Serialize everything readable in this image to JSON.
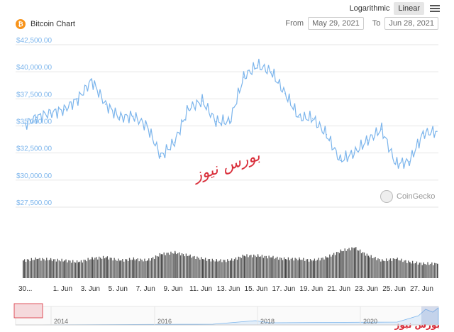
{
  "header": {
    "title": "Bitcoin Chart",
    "scale_log": "Logarithmic",
    "scale_linear": "Linear",
    "from_label": "From",
    "from_value": "May 29, 2021",
    "to_label": "To",
    "to_value": "Jun 28, 2021",
    "coin_glyph": "₿"
  },
  "watermarks": {
    "coingecko": "CoinGecko",
    "center_text": "بورس نیوز",
    "corner_text": "بورس نیوز"
  },
  "colors": {
    "price_line": "#7cb5ec",
    "volume": "#555555",
    "bitcoin_orange": "#f7931a"
  },
  "chart_data": {
    "type": "line",
    "title": "Bitcoin Chart",
    "ylim": [
      27500,
      42500
    ],
    "y_ticks": [
      "$42,500.00",
      "$40,000.00",
      "$37,500.00",
      "$35,000.00",
      "$32,500.00",
      "$30,000.00",
      "$27,500.00"
    ],
    "x_ticks": [
      "30...",
      "1. Jun",
      "3. Jun",
      "5. Jun",
      "7. Jun",
      "9. Jun",
      "11. Jun",
      "13. Jun",
      "15. Jun",
      "17. Jun",
      "19. Jun",
      "21. Jun",
      "23. Jun",
      "25. Jun",
      "27. Jun"
    ],
    "grid": true,
    "x": [
      "May 29",
      "May 30",
      "May 31",
      "Jun 1",
      "Jun 2",
      "Jun 3",
      "Jun 4",
      "Jun 5",
      "Jun 6",
      "Jun 7",
      "Jun 8",
      "Jun 9",
      "Jun 10",
      "Jun 11",
      "Jun 12",
      "Jun 13",
      "Jun 14",
      "Jun 15",
      "Jun 16",
      "Jun 17",
      "Jun 18",
      "Jun 19",
      "Jun 20",
      "Jun 21",
      "Jun 22",
      "Jun 23",
      "Jun 24",
      "Jun 25",
      "Jun 26",
      "Jun 27",
      "Jun 28"
    ],
    "series": [
      {
        "values": [
          35000,
          35800,
          36200,
          36500,
          37500,
          39200,
          37000,
          35800,
          35900,
          35000,
          32200,
          33500,
          36600,
          37300,
          35400,
          35400,
          39500,
          40600,
          40000,
          38000,
          35800,
          35700,
          34200,
          31800,
          32500,
          33700,
          34700,
          31500,
          31700,
          34300,
          34500
        ]
      },
      {
        "name": "Volume",
        "values": [
          0.55,
          0.6,
          0.58,
          0.55,
          0.5,
          0.62,
          0.65,
          0.55,
          0.6,
          0.55,
          0.75,
          0.8,
          0.7,
          0.6,
          0.55,
          0.55,
          0.7,
          0.7,
          0.65,
          0.6,
          0.6,
          0.55,
          0.65,
          0.85,
          0.95,
          0.7,
          0.55,
          0.6,
          0.5,
          0.45,
          0.45
        ]
      }
    ]
  },
  "navigator": {
    "years": [
      "2014",
      "2016",
      "2018",
      "2020"
    ]
  }
}
